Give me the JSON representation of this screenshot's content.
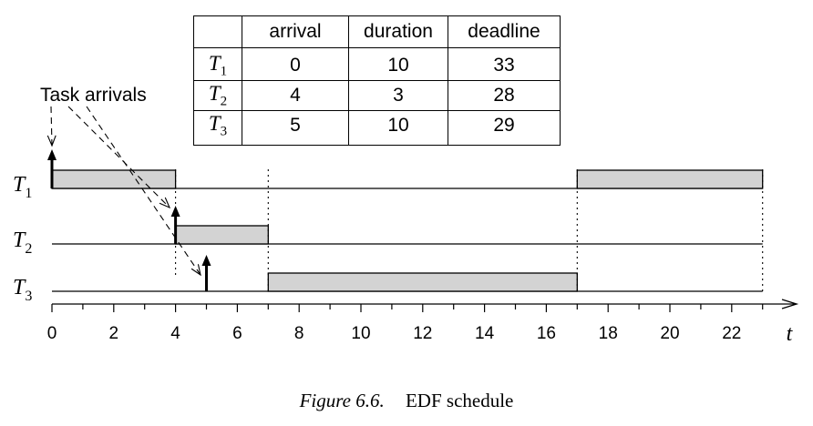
{
  "table": {
    "headers": [
      "",
      "arrival",
      "duration",
      "deadline"
    ],
    "rows": [
      {
        "task": "T",
        "sub": "1",
        "arrival": "0",
        "duration": "10",
        "deadline": "33"
      },
      {
        "task": "T",
        "sub": "2",
        "arrival": "4",
        "duration": "3",
        "deadline": "28"
      },
      {
        "task": "T",
        "sub": "3",
        "arrival": "5",
        "duration": "10",
        "deadline": "29"
      }
    ]
  },
  "annotation": "Task arrivals",
  "axis": {
    "label": "t",
    "min": 0,
    "max": 23,
    "tick_labels": [
      "0",
      "2",
      "4",
      "6",
      "8",
      "10",
      "12",
      "14",
      "16",
      "18",
      "20",
      "22"
    ]
  },
  "tasks": [
    {
      "name": "T",
      "sub": "1",
      "arrival": 0,
      "slots": [
        [
          0,
          4
        ],
        [
          17,
          23
        ]
      ]
    },
    {
      "name": "T",
      "sub": "2",
      "arrival": 4,
      "slots": [
        [
          4,
          7
        ]
      ]
    },
    {
      "name": "T",
      "sub": "3",
      "arrival": 5,
      "slots": [
        [
          7,
          17
        ]
      ]
    }
  ],
  "colors": {
    "bar_fill": "#d3d3d3",
    "line": "#000000"
  },
  "caption": {
    "figure": "Figure 6.6.",
    "text": "EDF schedule"
  }
}
